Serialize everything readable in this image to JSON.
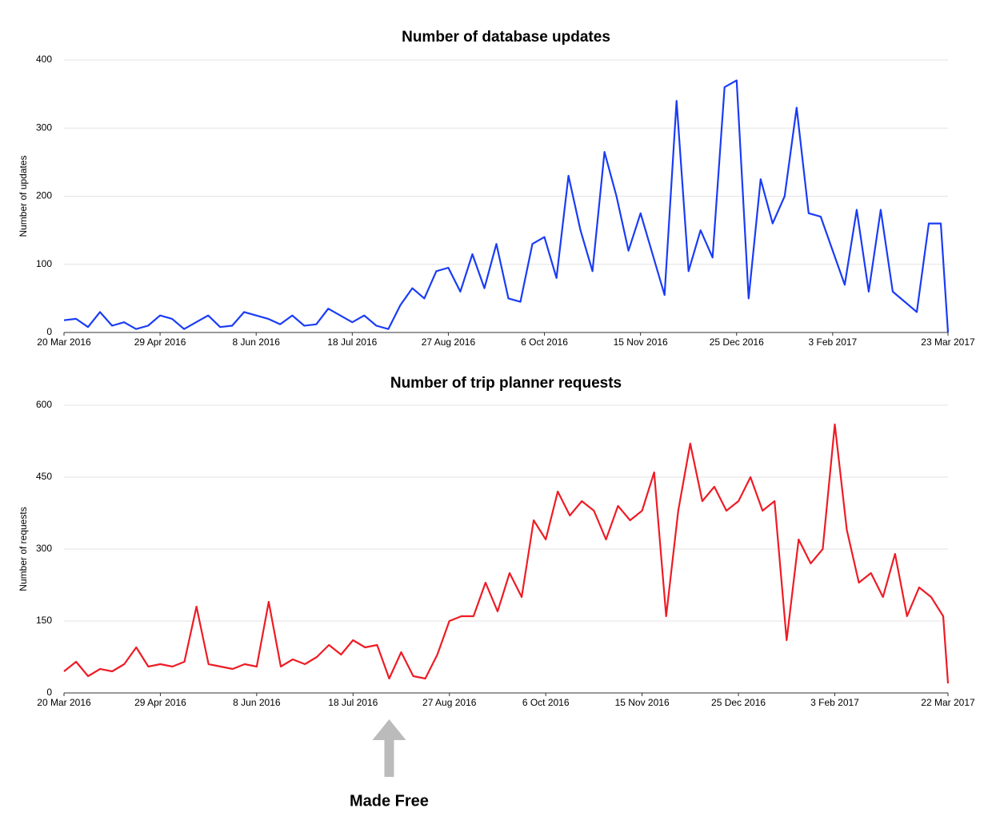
{
  "chart_data": [
    {
      "type": "line",
      "title": "Number of database updates",
      "y_label": "Number of updates",
      "x": [
        "2016-03-20",
        "2016-03-25",
        "2016-03-30",
        "2016-04-04",
        "2016-04-09",
        "2016-04-14",
        "2016-04-19",
        "2016-04-24",
        "2016-04-29",
        "2016-05-04",
        "2016-05-09",
        "2016-05-14",
        "2016-05-19",
        "2016-05-24",
        "2016-05-29",
        "2016-06-03",
        "2016-06-08",
        "2016-06-13",
        "2016-06-18",
        "2016-06-23",
        "2016-06-28",
        "2016-07-03",
        "2016-07-08",
        "2016-07-13",
        "2016-07-18",
        "2016-07-23",
        "2016-07-28",
        "2016-08-02",
        "2016-08-07",
        "2016-08-12",
        "2016-08-17",
        "2016-08-22",
        "2016-08-27",
        "2016-09-01",
        "2016-09-06",
        "2016-09-11",
        "2016-09-16",
        "2016-09-21",
        "2016-09-26",
        "2016-10-01",
        "2016-10-06",
        "2016-10-11",
        "2016-10-16",
        "2016-10-21",
        "2016-10-26",
        "2016-10-31",
        "2016-11-05",
        "2016-11-10",
        "2016-11-15",
        "2016-11-20",
        "2016-11-25",
        "2016-11-30",
        "2016-12-05",
        "2016-12-10",
        "2016-12-15",
        "2016-12-20",
        "2016-12-25",
        "2016-12-30",
        "2017-01-04",
        "2017-01-09",
        "2017-01-14",
        "2017-01-19",
        "2017-01-24",
        "2017-01-29",
        "2017-02-03",
        "2017-02-08",
        "2017-02-13",
        "2017-02-18",
        "2017-02-23",
        "2017-02-28",
        "2017-03-05",
        "2017-03-10",
        "2017-03-15",
        "2017-03-20",
        "2017-03-23"
      ],
      "series": [
        {
          "name": "Updates",
          "color": "#1a3cf5",
          "values": [
            18,
            20,
            8,
            30,
            10,
            15,
            5,
            10,
            25,
            20,
            5,
            15,
            25,
            8,
            10,
            30,
            25,
            20,
            12,
            25,
            10,
            12,
            35,
            25,
            15,
            25,
            10,
            5,
            40,
            65,
            50,
            90,
            95,
            60,
            115,
            65,
            130,
            50,
            45,
            130,
            140,
            80,
            230,
            150,
            90,
            265,
            200,
            120,
            175,
            115,
            55,
            340,
            90,
            150,
            110,
            360,
            370,
            50,
            225,
            160,
            200,
            330,
            175,
            170,
            120,
            70,
            180,
            60,
            180,
            60,
            45,
            30,
            160,
            160,
            0
          ]
        }
      ],
      "xlim": [
        "2016-03-20",
        "2017-03-23"
      ],
      "xticks": [
        {
          "value": "2016-03-20",
          "label": "20 Mar 2016"
        },
        {
          "value": "2016-04-29",
          "label": "29 Apr 2016"
        },
        {
          "value": "2016-06-08",
          "label": "8 Jun 2016"
        },
        {
          "value": "2016-07-18",
          "label": "18 Jul 2016"
        },
        {
          "value": "2016-08-27",
          "label": "27 Aug 2016"
        },
        {
          "value": "2016-10-06",
          "label": "6 Oct 2016"
        },
        {
          "value": "2016-11-15",
          "label": "15 Nov 2016"
        },
        {
          "value": "2016-12-25",
          "label": "25 Dec 2016"
        },
        {
          "value": "2017-02-03",
          "label": "3 Feb 2017"
        },
        {
          "value": "2017-03-23",
          "label": "23 Mar 2017"
        }
      ],
      "ylim": [
        0,
        400
      ],
      "yticks": [
        0,
        100,
        200,
        300,
        400
      ],
      "grid": true
    },
    {
      "type": "line",
      "title": "Number of trip planner requests",
      "y_label": "Number of requests",
      "x": [
        "2016-03-20",
        "2016-03-25",
        "2016-03-30",
        "2016-04-04",
        "2016-04-09",
        "2016-04-14",
        "2016-04-19",
        "2016-04-24",
        "2016-04-29",
        "2016-05-04",
        "2016-05-09",
        "2016-05-14",
        "2016-05-19",
        "2016-05-24",
        "2016-05-29",
        "2016-06-03",
        "2016-06-08",
        "2016-06-13",
        "2016-06-18",
        "2016-06-23",
        "2016-06-28",
        "2016-07-03",
        "2016-07-08",
        "2016-07-13",
        "2016-07-18",
        "2016-07-23",
        "2016-07-28",
        "2016-08-02",
        "2016-08-07",
        "2016-08-12",
        "2016-08-17",
        "2016-08-22",
        "2016-08-27",
        "2016-09-01",
        "2016-09-06",
        "2016-09-11",
        "2016-09-16",
        "2016-09-21",
        "2016-09-26",
        "2016-10-01",
        "2016-10-06",
        "2016-10-11",
        "2016-10-16",
        "2016-10-21",
        "2016-10-26",
        "2016-10-31",
        "2016-11-05",
        "2016-11-10",
        "2016-11-15",
        "2016-11-20",
        "2016-11-25",
        "2016-11-30",
        "2016-12-05",
        "2016-12-10",
        "2016-12-15",
        "2016-12-20",
        "2016-12-25",
        "2016-12-30",
        "2017-01-04",
        "2017-01-09",
        "2017-01-14",
        "2017-01-19",
        "2017-01-24",
        "2017-01-29",
        "2017-02-03",
        "2017-02-08",
        "2017-02-13",
        "2017-02-18",
        "2017-02-23",
        "2017-02-28",
        "2017-03-05",
        "2017-03-10",
        "2017-03-15",
        "2017-03-20",
        "2017-03-22"
      ],
      "series": [
        {
          "name": "Requests",
          "color": "#ee1c25",
          "values": [
            45,
            65,
            35,
            50,
            45,
            60,
            95,
            55,
            60,
            55,
            65,
            180,
            60,
            55,
            50,
            60,
            55,
            190,
            55,
            70,
            60,
            75,
            100,
            80,
            110,
            95,
            100,
            30,
            85,
            35,
            30,
            80,
            150,
            160,
            160,
            230,
            170,
            250,
            200,
            360,
            320,
            420,
            370,
            400,
            380,
            320,
            390,
            360,
            380,
            460,
            160,
            380,
            520,
            400,
            430,
            380,
            400,
            450,
            380,
            400,
            110,
            320,
            270,
            300,
            560,
            340,
            230,
            250,
            200,
            290,
            160,
            220,
            200,
            160,
            20
          ]
        }
      ],
      "xlim": [
        "2016-03-20",
        "2017-03-22"
      ],
      "xticks": [
        {
          "value": "2016-03-20",
          "label": "20 Mar 2016"
        },
        {
          "value": "2016-04-29",
          "label": "29 Apr 2016"
        },
        {
          "value": "2016-06-08",
          "label": "8 Jun 2016"
        },
        {
          "value": "2016-07-18",
          "label": "18 Jul 2016"
        },
        {
          "value": "2016-08-27",
          "label": "27 Aug 2016"
        },
        {
          "value": "2016-10-06",
          "label": "6 Oct 2016"
        },
        {
          "value": "2016-11-15",
          "label": "15 Nov 2016"
        },
        {
          "value": "2016-12-25",
          "label": "25 Dec 2016"
        },
        {
          "value": "2017-02-03",
          "label": "3 Feb 2017"
        },
        {
          "value": "2017-03-22",
          "label": "22 Mar 2017"
        }
      ],
      "ylim": [
        0,
        600
      ],
      "yticks": [
        0,
        150,
        300,
        450,
        600
      ],
      "grid": true,
      "annotation": {
        "text": "Made Free",
        "x": "2016-08-02"
      }
    }
  ]
}
